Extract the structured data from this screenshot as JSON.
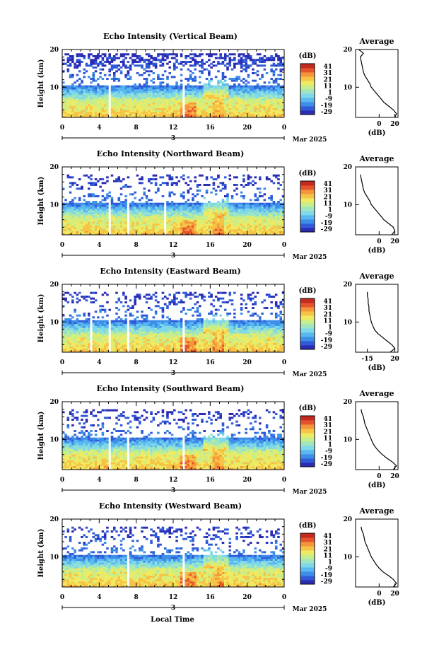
{
  "figure": {
    "x_axis_label": "Local Time",
    "x_ticks": [
      "0",
      "4",
      "8",
      "12",
      "16",
      "20",
      "0"
    ],
    "date_day": "3",
    "month_year": "Mar 2025",
    "y_axis_label": "Height (km)",
    "y_ticks": [
      "20",
      "10"
    ],
    "colorbar_unit": "(dB)",
    "colorbar_ticks": [
      "41",
      "31",
      "21",
      "11",
      "1",
      "-9",
      "-19",
      "-29"
    ],
    "average_title": "Average",
    "average_xlabel": "(dB)",
    "colorbar_colors": [
      "#2b2bb4",
      "#2f5bd9",
      "#3d8ee8",
      "#5ab8f0",
      "#7fd8e8",
      "#9fe6c0",
      "#c6ee8a",
      "#eeea62",
      "#f7c345",
      "#f5953a",
      "#e5532c",
      "#c42a1e"
    ]
  },
  "chart_data": [
    {
      "type": "heatmap",
      "title": "Echo Intensity (Vertical Beam)",
      "xlabel": "Local Time",
      "ylabel": "Height (km)",
      "x_range_hours": [
        0,
        24
      ],
      "y_range_km": [
        2,
        20
      ],
      "color_range_db": [
        -29,
        41
      ],
      "echo_top_km": 19,
      "average_profile": {
        "title": "Average",
        "xlabel": "(dB)",
        "x_ticks": [
          "0",
          "20"
        ],
        "y_ticks": [
          "20",
          "10"
        ],
        "heights_km": [
          2,
          3,
          4,
          5,
          6,
          7,
          8,
          9,
          10,
          11,
          12,
          13,
          14,
          15,
          16,
          17,
          18,
          19,
          20
        ],
        "values_db": [
          20,
          22,
          18,
          12,
          6,
          2,
          -2,
          -6,
          -10,
          -12,
          -15,
          -18,
          -20,
          -21,
          -22,
          -23,
          -24,
          -20,
          -26
        ]
      }
    },
    {
      "type": "heatmap",
      "title": "Echo Intensity (Northward Beam)",
      "xlabel": "Local Time",
      "ylabel": "Height (km)",
      "x_range_hours": [
        0,
        24
      ],
      "y_range_km": [
        2,
        20
      ],
      "color_range_db": [
        -29,
        41
      ],
      "echo_top_km": 18,
      "average_profile": {
        "title": "Average",
        "xlabel": "(dB)",
        "x_ticks": [
          "0",
          "20"
        ],
        "y_ticks": [
          "20",
          "10"
        ],
        "heights_km": [
          2,
          3,
          4,
          5,
          6,
          7,
          8,
          9,
          10,
          11,
          12,
          13,
          14,
          15,
          16,
          17,
          18
        ],
        "values_db": [
          16,
          20,
          18,
          12,
          6,
          2,
          -2,
          -6,
          -10,
          -12,
          -15,
          -18,
          -20,
          -21,
          -22,
          -23,
          -24
        ]
      }
    },
    {
      "type": "heatmap",
      "title": "Echo Intensity (Eastward Beam)",
      "xlabel": "Local Time",
      "ylabel": "Height (km)",
      "x_range_hours": [
        0,
        24
      ],
      "y_range_km": [
        2,
        20
      ],
      "color_range_db": [
        -29,
        41
      ],
      "echo_top_km": 18,
      "average_profile": {
        "title": "Average",
        "xlabel": "(dB)",
        "x_ticks": [
          "-15",
          "20"
        ],
        "y_ticks": [
          "20",
          "10"
        ],
        "heights_km": [
          2,
          3,
          4,
          5,
          6,
          7,
          8,
          9,
          10,
          11,
          12,
          13,
          14,
          15,
          16,
          17,
          18
        ],
        "values_db": [
          14,
          20,
          16,
          10,
          4,
          -2,
          -6,
          -8,
          -10,
          -11,
          -12,
          -13,
          -13,
          -14,
          -14,
          -15,
          -15
        ]
      }
    },
    {
      "type": "heatmap",
      "title": "Echo Intensity (Southward Beam)",
      "xlabel": "Local Time",
      "ylabel": "Height (km)",
      "x_range_hours": [
        0,
        24
      ],
      "y_range_km": [
        2,
        20
      ],
      "color_range_db": [
        -29,
        41
      ],
      "echo_top_km": 18,
      "average_profile": {
        "title": "Average",
        "xlabel": "(dB)",
        "x_ticks": [
          "0",
          "20"
        ],
        "y_ticks": [
          "20",
          "10"
        ],
        "heights_km": [
          2,
          3,
          4,
          5,
          6,
          7,
          8,
          9,
          10,
          11,
          12,
          13,
          14,
          15,
          16,
          17,
          18
        ],
        "values_db": [
          18,
          22,
          17,
          10,
          4,
          -1,
          -5,
          -8,
          -10,
          -12,
          -14,
          -16,
          -18,
          -19,
          -20,
          -22,
          -23
        ]
      }
    },
    {
      "type": "heatmap",
      "title": "Echo Intensity (Westward Beam)",
      "xlabel": "Local Time",
      "ylabel": "Height (km)",
      "x_range_hours": [
        0,
        24
      ],
      "y_range_km": [
        2,
        20
      ],
      "color_range_db": [
        -29,
        41
      ],
      "echo_top_km": 18,
      "average_profile": {
        "title": "Average",
        "xlabel": "(dB)",
        "x_ticks": [
          "0",
          "20"
        ],
        "y_ticks": [
          "20",
          "10"
        ],
        "heights_km": [
          2,
          3,
          4,
          5,
          6,
          7,
          8,
          9,
          10,
          11,
          12,
          13,
          14,
          15,
          16,
          17,
          18
        ],
        "values_db": [
          18,
          22,
          18,
          12,
          5,
          0,
          -4,
          -7,
          -10,
          -12,
          -14,
          -16,
          -18,
          -19,
          -20,
          -22,
          -23
        ]
      }
    }
  ]
}
